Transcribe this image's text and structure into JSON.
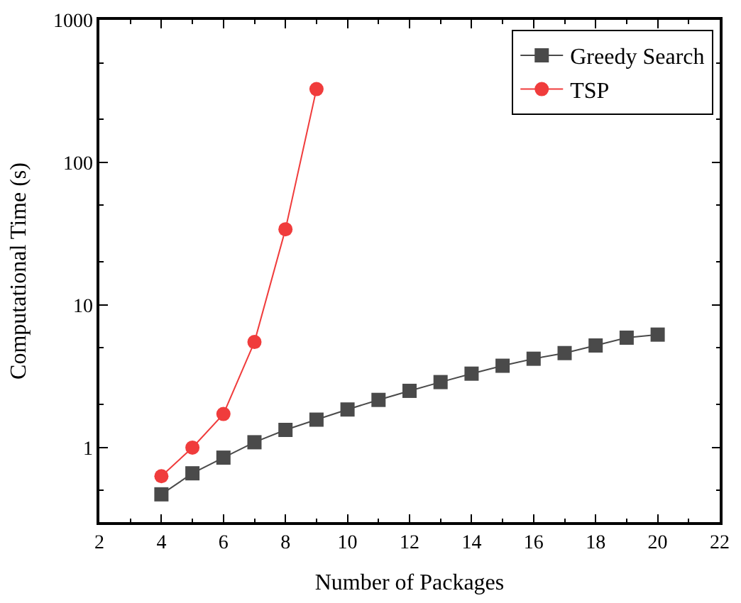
{
  "chart_data": {
    "type": "line",
    "xlabel": "Number of Packages",
    "ylabel": "Computational Time (s)",
    "log": "y",
    "legend": "top right",
    "line_style": "solid",
    "xlim": [
      2,
      22
    ],
    "xticks": [
      2,
      4,
      6,
      8,
      10,
      12,
      14,
      16,
      18,
      20,
      22
    ],
    "ylim": [
      0.3,
      1000
    ],
    "yticks": [
      1,
      10,
      100,
      1000
    ],
    "series": [
      {
        "name": "Greedy Search",
        "color": "#4a4a4a",
        "marker": "square",
        "x": [
          4,
          5,
          6,
          7,
          8,
          9,
          10,
          11,
          12,
          13,
          14,
          15,
          16,
          17,
          18,
          19,
          20
        ],
        "values": [
          0.47,
          0.66,
          0.85,
          1.09,
          1.33,
          1.57,
          1.85,
          2.16,
          2.5,
          2.88,
          3.3,
          3.75,
          4.2,
          4.6,
          5.2,
          5.9,
          6.2
        ]
      },
      {
        "name": "TSP",
        "color": "#f03c3c",
        "marker": "circle",
        "x": [
          4,
          5,
          6,
          7,
          8,
          9
        ],
        "values": [
          0.63,
          1.0,
          1.72,
          5.5,
          34,
          327
        ]
      }
    ]
  }
}
